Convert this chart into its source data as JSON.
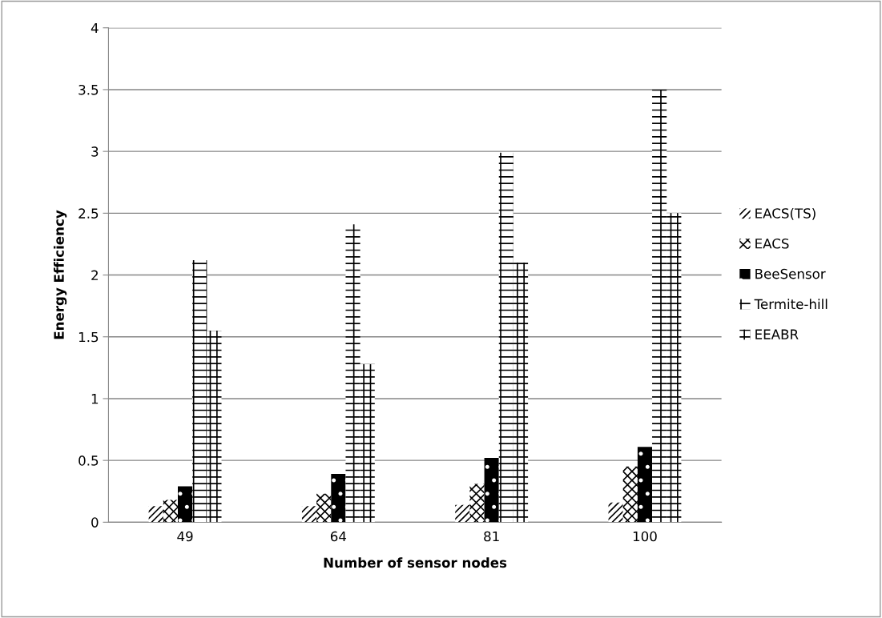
{
  "chart_data": {
    "type": "bar",
    "xlabel": "Number of sensor nodes",
    "ylabel": "Energy Efficiency",
    "categories": [
      "49",
      "64",
      "81",
      "100"
    ],
    "series": [
      {
        "name": "EACS(TS)",
        "color": "#ffffff",
        "values": [
          0.13,
          0.13,
          0.14,
          0.16
        ]
      },
      {
        "name": "EACS",
        "color": "#ffffff",
        "values": [
          0.18,
          0.23,
          0.31,
          0.45
        ]
      },
      {
        "name": "BeeSensor",
        "color": "#000000",
        "values": [
          0.29,
          0.39,
          0.52,
          0.61
        ]
      },
      {
        "name": "Termite-hill",
        "color": "#ffffff",
        "values": [
          2.12,
          2.41,
          2.99,
          3.5
        ]
      },
      {
        "name": "EEABR",
        "color": "#ffffff",
        "values": [
          1.55,
          1.28,
          2.1,
          2.5
        ]
      }
    ],
    "ylim": [
      0,
      4
    ],
    "yticks": [
      0,
      0.5,
      1,
      1.5,
      2,
      2.5,
      3,
      3.5,
      4
    ],
    "grid": "y",
    "legend": "right"
  }
}
